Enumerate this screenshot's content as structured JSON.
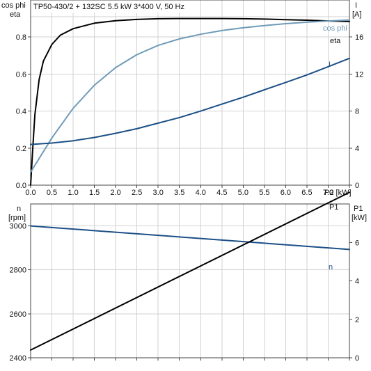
{
  "chart_data": [
    {
      "type": "line",
      "title": "TP50-430/2 + 132SC   5.5 kW   3*400 V, 50 Hz",
      "xlabel": "P2 [kW]",
      "x_ticks": [
        "0.0",
        "0.5",
        "1.0",
        "1.5",
        "2.0",
        "2.5",
        "3.0",
        "3.5",
        "4.0",
        "4.5",
        "5.0",
        "5.5",
        "6.0",
        "6.5",
        "7.0"
      ],
      "xlim": [
        0,
        7.5
      ],
      "ylabel_left": [
        "cos phi",
        "eta"
      ],
      "ylim_left": [
        0,
        1.0
      ],
      "yticks_left": [
        "0.0",
        "0.2",
        "0.4",
        "0.6",
        "0.8"
      ],
      "ylabel_right": [
        "I",
        "[A]"
      ],
      "ylim_right": [
        0,
        20
      ],
      "yticks_right": [
        "0",
        "4",
        "8",
        "12",
        "16"
      ],
      "grid": true,
      "series": [
        {
          "name": "eta",
          "axis": "left",
          "color": "#000000",
          "x": [
            0.0,
            0.05,
            0.1,
            0.2,
            0.3,
            0.5,
            0.7,
            1.0,
            1.5,
            2.0,
            2.5,
            3.0,
            3.5,
            4.0,
            4.5,
            5.0,
            5.5,
            6.0,
            6.5,
            7.0,
            7.5
          ],
          "y": [
            0.0,
            0.2,
            0.38,
            0.57,
            0.67,
            0.76,
            0.81,
            0.845,
            0.875,
            0.888,
            0.895,
            0.899,
            0.9,
            0.9,
            0.9,
            0.899,
            0.897,
            0.894,
            0.891,
            0.887,
            0.884
          ]
        },
        {
          "name": "cos phi",
          "axis": "left",
          "color": "#6f9ab8",
          "x": [
            0.0,
            0.5,
            1.0,
            1.5,
            2.0,
            2.5,
            3.0,
            3.5,
            4.0,
            4.5,
            5.0,
            5.5,
            6.0,
            6.5,
            7.0,
            7.5
          ],
          "y": [
            0.07,
            0.255,
            0.415,
            0.54,
            0.635,
            0.705,
            0.755,
            0.79,
            0.815,
            0.835,
            0.85,
            0.862,
            0.872,
            0.88,
            0.887,
            0.892
          ]
        },
        {
          "name": "I",
          "axis": "right",
          "color": "#1c4f86",
          "x": [
            0.0,
            0.5,
            1.0,
            1.5,
            2.0,
            2.5,
            3.0,
            3.5,
            4.0,
            4.5,
            5.0,
            5.5,
            6.0,
            6.5,
            7.0,
            7.5
          ],
          "y": [
            4.4,
            4.55,
            4.8,
            5.15,
            5.6,
            6.1,
            6.7,
            7.3,
            8.0,
            8.75,
            9.5,
            10.3,
            11.1,
            11.9,
            12.8,
            13.7
          ]
        }
      ]
    },
    {
      "type": "line",
      "xlim": [
        0,
        7.5
      ],
      "ylabel_left": [
        "n",
        "[rpm]"
      ],
      "ylim_left": [
        2400,
        3100
      ],
      "yticks_left": [
        "2400",
        "2600",
        "2800",
        "3000"
      ],
      "ylabel_right": [
        "P1",
        "[kW]"
      ],
      "ylim_right": [
        0,
        8
      ],
      "yticks_right": [
        "0",
        "2",
        "4",
        "6"
      ],
      "grid": true,
      "series": [
        {
          "name": "n",
          "axis": "left",
          "color": "#1c4f86",
          "x": [
            0.0,
            7.5
          ],
          "y": [
            3000,
            2893
          ]
        },
        {
          "name": "P1",
          "axis": "right",
          "color": "#000000",
          "x": [
            0.0,
            7.5
          ],
          "y": [
            0.4,
            8.6
          ]
        }
      ]
    }
  ],
  "labels": {
    "top_left_line1": "cos phi",
    "top_left_line2": "eta",
    "top_right_line1": "I",
    "top_right_line2": "[A]",
    "x_axis_unit": "P2 [kW]",
    "series_eta": "eta",
    "series_cosphi": "cos phi",
    "series_i": "I",
    "bottom_left_line1": "n",
    "bottom_left_line2": "[rpm]",
    "bottom_right_line1": "P1",
    "bottom_right_line2": "[kW]",
    "series_n": "n",
    "series_p1": "P1",
    "p1_top_label": "P1"
  }
}
